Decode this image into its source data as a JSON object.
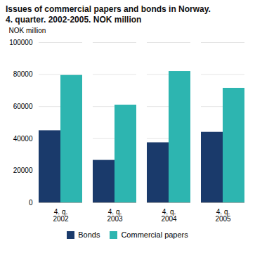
{
  "chart_data": {
    "type": "bar",
    "title": "Issues of commercial papers and bonds in Norway.",
    "subtitle": "4. quarter. 2002-2005. NOK million",
    "ylabel": "NOK million",
    "categories": [
      "4. q.\n2002",
      "4. q.\n2003",
      "4. q.\n2004",
      "4. q.\n2005"
    ],
    "series": [
      {
        "name": "Bonds",
        "color": "#1a3a6b",
        "values": [
          45000,
          26500,
          37500,
          44000
        ]
      },
      {
        "name": "Commercial papers",
        "color": "#2db5b0",
        "values": [
          79500,
          61000,
          82000,
          71500
        ]
      }
    ],
    "ylim": [
      0,
      100000
    ],
    "yticks": [
      0,
      20000,
      40000,
      60000,
      80000,
      100000
    ],
    "grid": true,
    "legend": "bottom"
  }
}
